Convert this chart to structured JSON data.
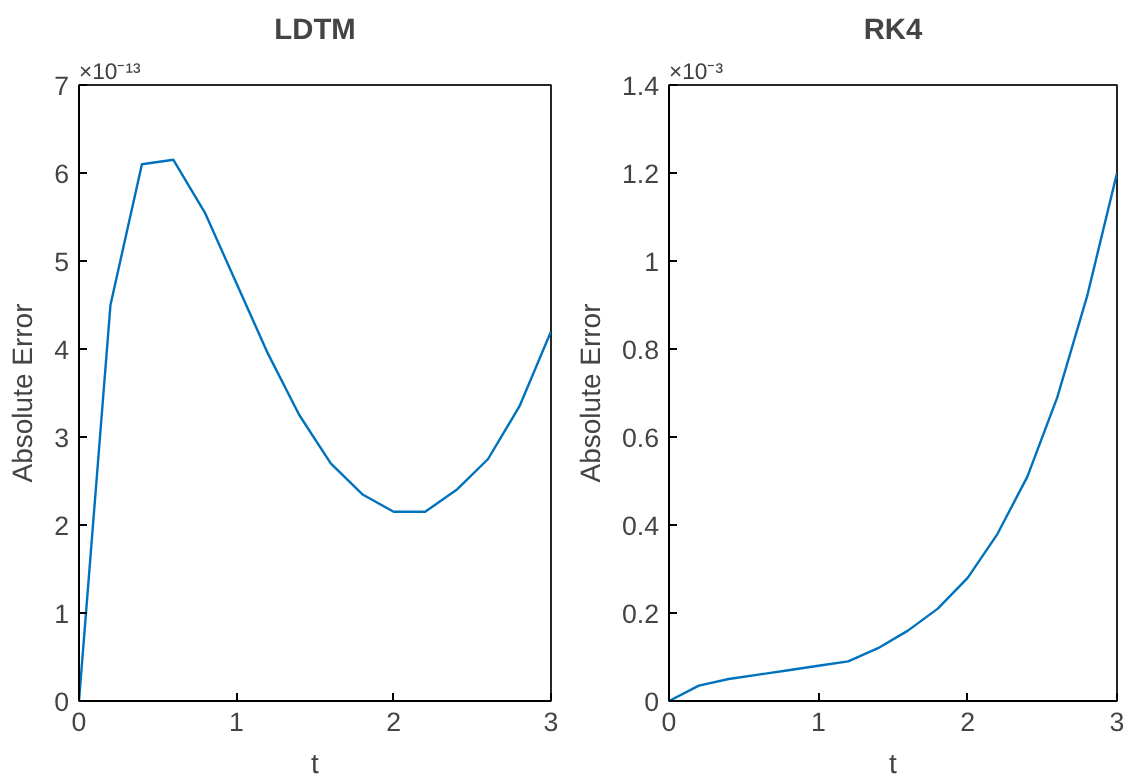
{
  "chart_data": [
    {
      "type": "line",
      "title": "LDTM",
      "xlabel": "t",
      "ylabel": "Absolute Error",
      "x": [
        0,
        0.2,
        0.4,
        0.6,
        0.8,
        1.0,
        1.2,
        1.4,
        1.6,
        1.8,
        2.0,
        2.2,
        2.4,
        2.6,
        2.8,
        3.0
      ],
      "series": [
        {
          "color": "#0072bd",
          "values": [
            0,
            4.5,
            6.1,
            6.15,
            5.55,
            4.75,
            3.95,
            3.25,
            2.7,
            2.35,
            2.15,
            2.15,
            2.4,
            2.75,
            3.35,
            4.2
          ]
        }
      ],
      "xlim": [
        0,
        3
      ],
      "ylim": [
        0,
        7
      ],
      "xticks": [
        0,
        1,
        2,
        3
      ],
      "yticks": [
        0,
        1,
        2,
        3,
        4,
        5,
        6,
        7
      ],
      "annotations": [
        "×10⁻¹³"
      ],
      "line_style": "solid"
    },
    {
      "type": "line",
      "title": "RK4",
      "xlabel": "t",
      "ylabel": "Absolute Error",
      "x": [
        0,
        0.2,
        0.4,
        0.6,
        0.8,
        1.0,
        1.2,
        1.4,
        1.6,
        1.8,
        2.0,
        2.2,
        2.4,
        2.6,
        2.8,
        3.0
      ],
      "series": [
        {
          "color": "#0072bd",
          "values": [
            0,
            0.035,
            0.05,
            0.06,
            0.07,
            0.08,
            0.09,
            0.12,
            0.16,
            0.21,
            0.28,
            0.38,
            0.51,
            0.69,
            0.92,
            1.2
          ]
        }
      ],
      "xlim": [
        0,
        3
      ],
      "ylim": [
        0,
        1.4
      ],
      "xticks": [
        0,
        1,
        2,
        3
      ],
      "yticks": [
        0,
        0.2,
        0.4,
        0.6,
        0.8,
        1,
        1.2,
        1.4
      ],
      "annotations": [
        "×10⁻³"
      ],
      "line_style": "solid"
    }
  ]
}
